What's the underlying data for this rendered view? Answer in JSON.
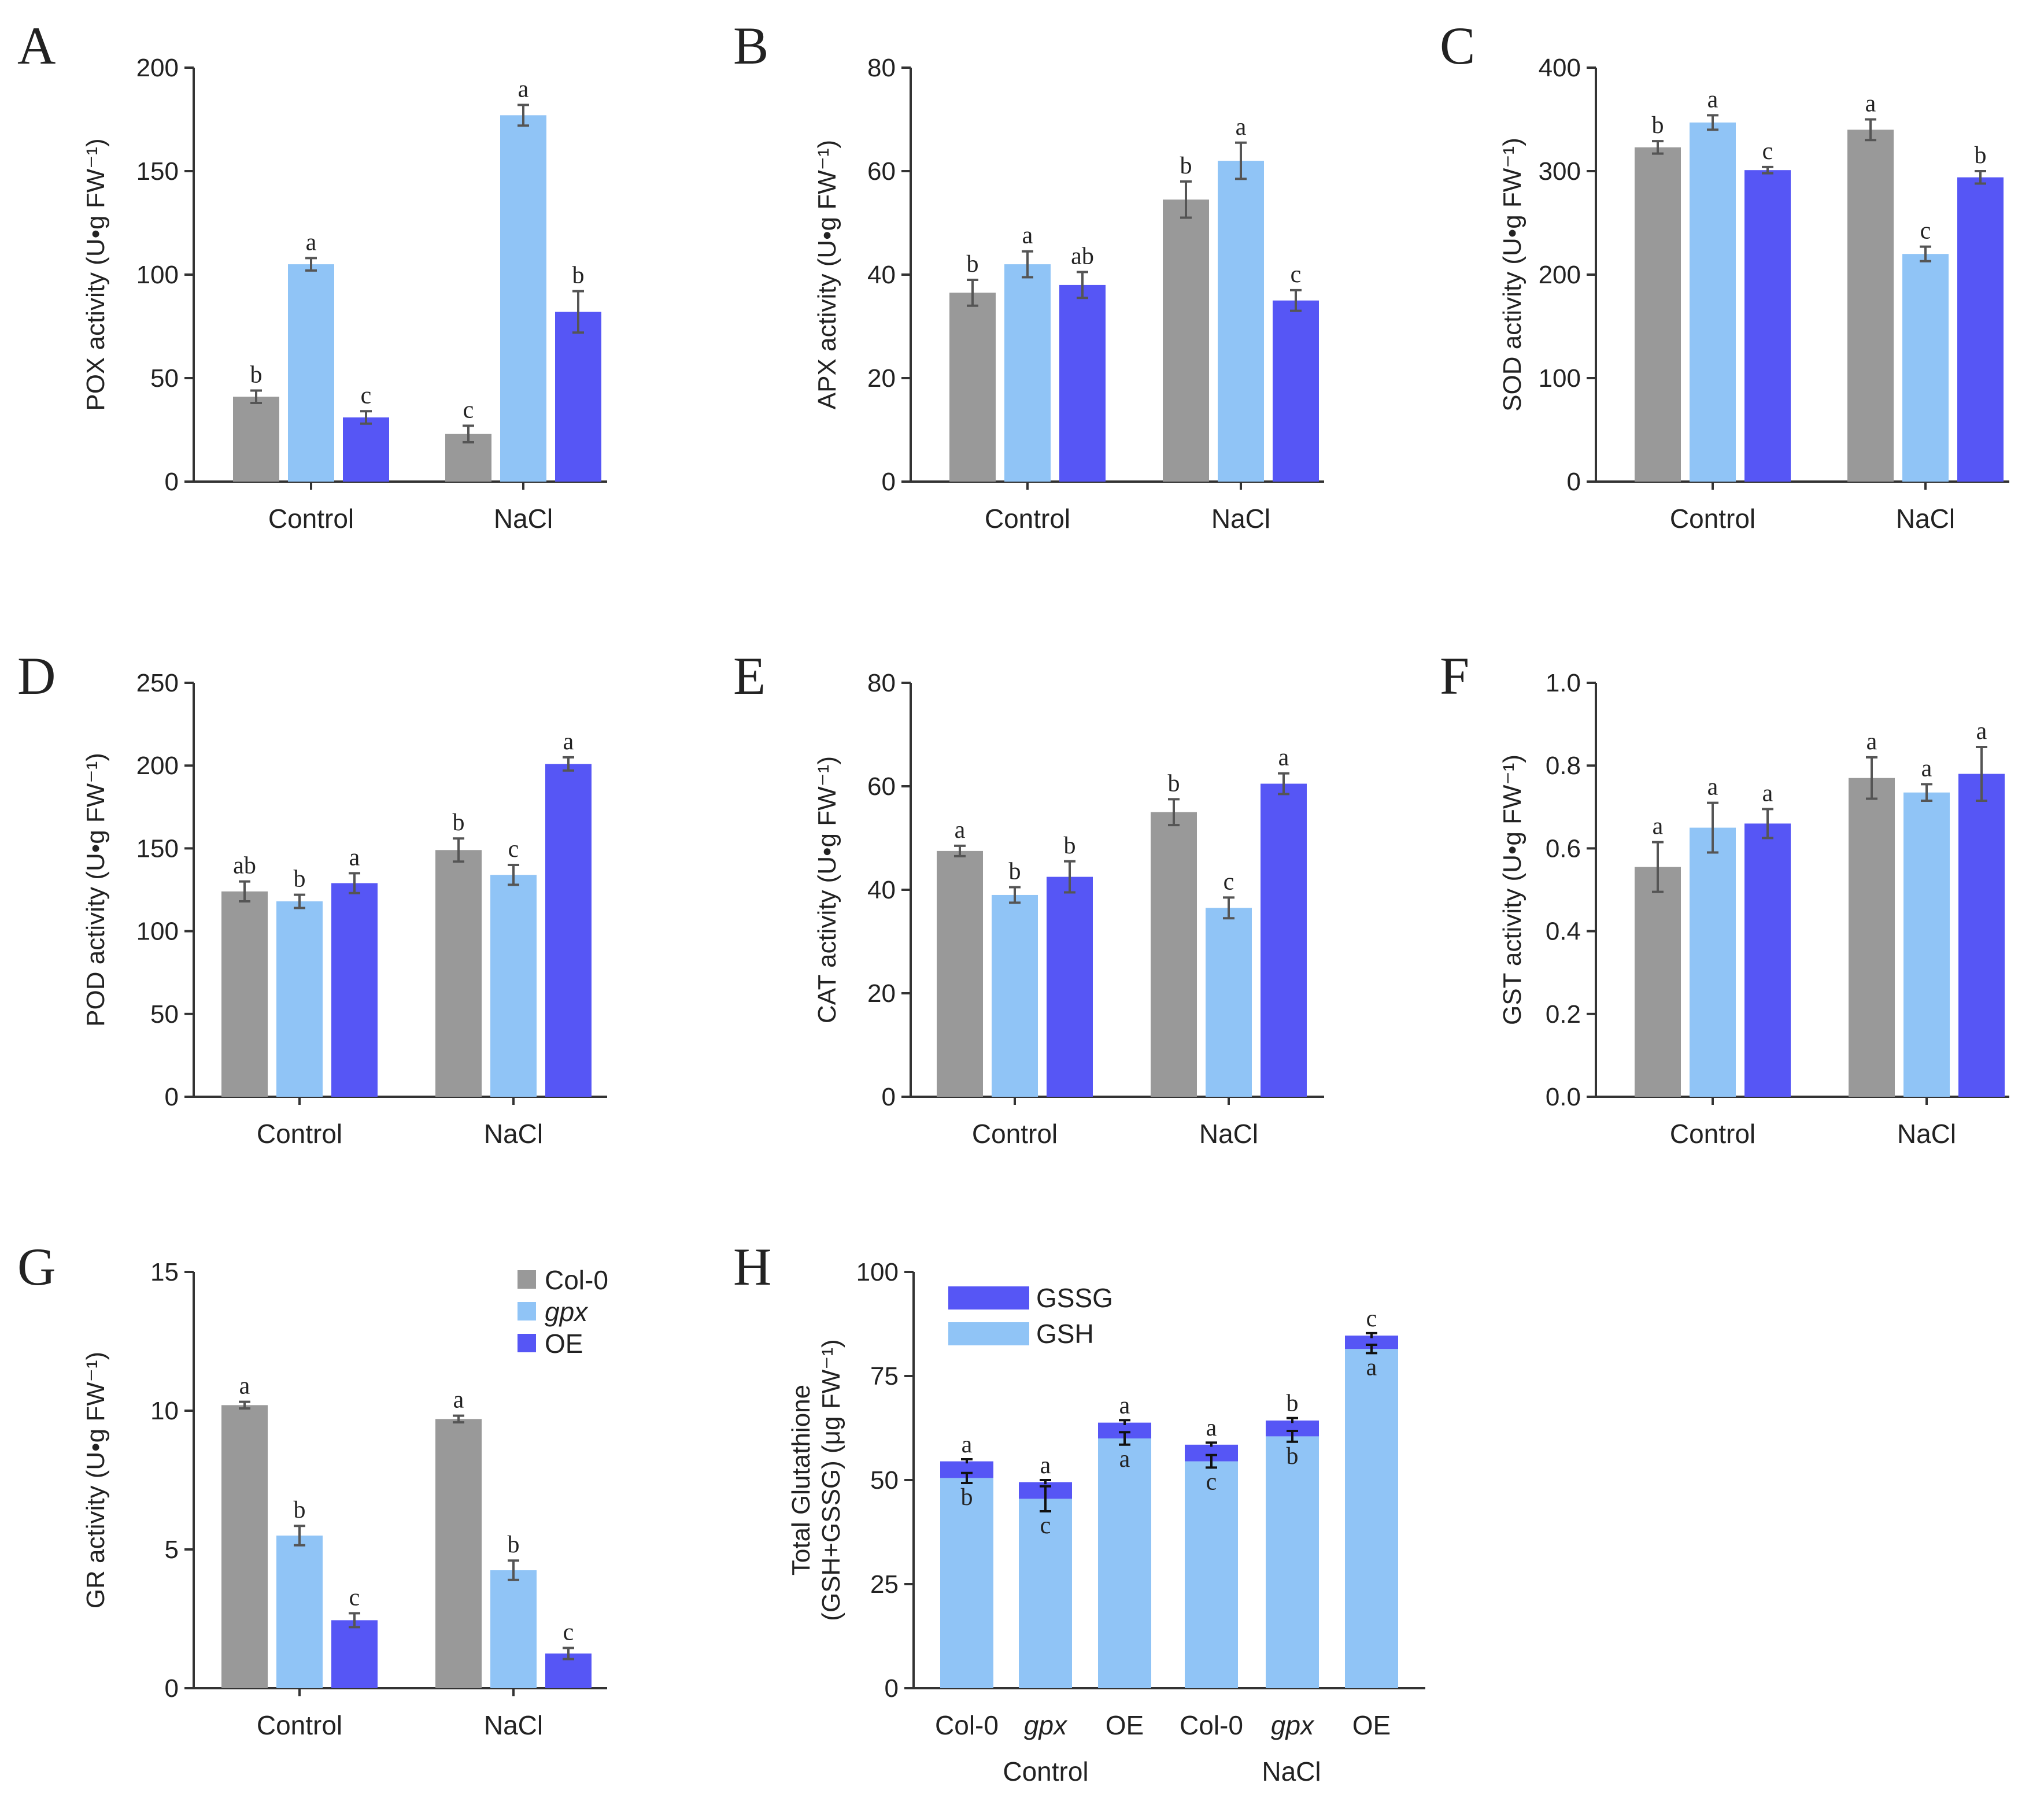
{
  "legend": [
    {
      "name": "Col-0",
      "italic": false
    },
    {
      "name": "gpx",
      "italic": true
    },
    {
      "name": "OE",
      "italic": false
    }
  ],
  "colors": {
    "Col-0": "#999999",
    "gpx": "#90c4f6",
    "OE": "#5656f5",
    "GSSG": "#5656f5",
    "GSH": "#90c4f6"
  },
  "chart_data": [
    {
      "panel": "A",
      "type": "bar",
      "ylabel": "POX activity (U•g FW⁻¹)",
      "categories": [
        "Control",
        "NaCl"
      ],
      "ylim": [
        0,
        200
      ],
      "yticks": [
        "0",
        "50",
        "100",
        "150",
        "200"
      ],
      "series": [
        {
          "name": "Col-0",
          "values": [
            41,
            23
          ],
          "errors": [
            3,
            4
          ],
          "letters": [
            "b",
            "c"
          ]
        },
        {
          "name": "gpx",
          "values": [
            105,
            177
          ],
          "errors": [
            3,
            5
          ],
          "letters": [
            "a",
            "a"
          ]
        },
        {
          "name": "OE",
          "values": [
            31,
            82
          ],
          "errors": [
            3,
            10
          ],
          "letters": [
            "c",
            "b"
          ]
        }
      ]
    },
    {
      "panel": "B",
      "type": "bar",
      "ylabel": "APX activity (U•g FW⁻¹)",
      "categories": [
        "Control",
        "NaCl"
      ],
      "ylim": [
        0,
        80
      ],
      "yticks": [
        "0",
        "20",
        "40",
        "60",
        "80"
      ],
      "series": [
        {
          "name": "Col-0",
          "values": [
            36.5,
            54.5
          ],
          "errors": [
            2.5,
            3.5
          ],
          "letters": [
            "b",
            "b"
          ]
        },
        {
          "name": "gpx",
          "values": [
            42,
            62
          ],
          "errors": [
            2.5,
            3.5
          ],
          "letters": [
            "a",
            "a"
          ]
        },
        {
          "name": "OE",
          "values": [
            38,
            35
          ],
          "errors": [
            2.5,
            2
          ],
          "letters": [
            "ab",
            "c"
          ]
        }
      ]
    },
    {
      "panel": "C",
      "type": "bar",
      "ylabel": "SOD activity (U•g FW⁻¹)",
      "categories": [
        "Control",
        "NaCl"
      ],
      "ylim": [
        0,
        400
      ],
      "yticks": [
        "0",
        "100",
        "200",
        "300",
        "400"
      ],
      "series": [
        {
          "name": "Col-0",
          "values": [
            323,
            340
          ],
          "errors": [
            6,
            10
          ],
          "letters": [
            "b",
            "a"
          ]
        },
        {
          "name": "gpx",
          "values": [
            347,
            220
          ],
          "errors": [
            7,
            7
          ],
          "letters": [
            "a",
            "c"
          ]
        },
        {
          "name": "OE",
          "values": [
            301,
            294
          ],
          "errors": [
            3,
            6
          ],
          "letters": [
            "c",
            "b"
          ]
        }
      ]
    },
    {
      "panel": "D",
      "type": "bar",
      "ylabel": "POD activity (U•g FW⁻¹)",
      "categories": [
        "Control",
        "NaCl"
      ],
      "ylim": [
        0,
        250
      ],
      "yticks": [
        "0",
        "50",
        "100",
        "150",
        "200",
        "250"
      ],
      "series": [
        {
          "name": "Col-0",
          "values": [
            124,
            149
          ],
          "errors": [
            6,
            7
          ],
          "letters": [
            "ab",
            "b"
          ]
        },
        {
          "name": "gpx",
          "values": [
            118,
            134
          ],
          "errors": [
            4,
            6
          ],
          "letters": [
            "b",
            "c"
          ]
        },
        {
          "name": "OE",
          "values": [
            129,
            201
          ],
          "errors": [
            6,
            4
          ],
          "letters": [
            "a",
            "a"
          ]
        }
      ]
    },
    {
      "panel": "E",
      "type": "bar",
      "ylabel": "CAT activity (U•g FW⁻¹)",
      "categories": [
        "Control",
        "NaCl"
      ],
      "ylim": [
        0,
        80
      ],
      "yticks": [
        "0",
        "20",
        "40",
        "60",
        "80"
      ],
      "series": [
        {
          "name": "Col-0",
          "values": [
            47.5,
            55
          ],
          "errors": [
            1,
            2.5
          ],
          "letters": [
            "a",
            "b"
          ]
        },
        {
          "name": "gpx",
          "values": [
            39,
            36.5
          ],
          "errors": [
            1.5,
            2
          ],
          "letters": [
            "b",
            "c"
          ]
        },
        {
          "name": "OE",
          "values": [
            42.5,
            60.5
          ],
          "errors": [
            3,
            2
          ],
          "letters": [
            "b",
            "a"
          ]
        }
      ]
    },
    {
      "panel": "F",
      "type": "bar",
      "ylabel": "GST activity (U•g FW⁻¹)",
      "categories": [
        "Control",
        "NaCl"
      ],
      "ylim": [
        0,
        1.0
      ],
      "yticks": [
        "0.0",
        "0.2",
        "0.4",
        "0.6",
        "0.8",
        "1.0"
      ],
      "series": [
        {
          "name": "Col-0",
          "values": [
            0.555,
            0.77
          ],
          "errors": [
            0.06,
            0.05
          ],
          "letters": [
            "a",
            "a"
          ]
        },
        {
          "name": "gpx",
          "values": [
            0.65,
            0.735
          ],
          "errors": [
            0.06,
            0.02
          ],
          "letters": [
            "a",
            "a"
          ]
        },
        {
          "name": "OE",
          "values": [
            0.66,
            0.78
          ],
          "errors": [
            0.035,
            0.065
          ],
          "letters": [
            "a",
            "a"
          ]
        }
      ]
    },
    {
      "panel": "G",
      "type": "bar",
      "ylabel": "GR activity (U•g FW⁻¹)",
      "categories": [
        "Control",
        "NaCl"
      ],
      "ylim": [
        0,
        15
      ],
      "yticks": [
        "0",
        "5",
        "10",
        "15"
      ],
      "series": [
        {
          "name": "Col-0",
          "values": [
            10.2,
            9.7
          ],
          "errors": [
            0.12,
            0.12
          ],
          "letters": [
            "a",
            "a"
          ]
        },
        {
          "name": "gpx",
          "values": [
            5.5,
            4.25
          ],
          "errors": [
            0.35,
            0.35
          ],
          "letters": [
            "b",
            "b"
          ]
        },
        {
          "name": "OE",
          "values": [
            2.45,
            1.25
          ],
          "errors": [
            0.25,
            0.2
          ],
          "letters": [
            "c",
            "c"
          ]
        }
      ]
    },
    {
      "panel": "H",
      "type": "stacked-bar",
      "ylabel": "Total Glutathione (GSH+GSSG) (μg FW⁻¹)",
      "ylabel_lines": [
        "Total Glutathione",
        "(GSH+GSSG) (μg FW⁻¹)"
      ],
      "categories": [
        "Col-0",
        "gpx",
        "OE",
        "Col-0",
        "gpx",
        "OE"
      ],
      "category_italic": [
        false,
        true,
        false,
        false,
        true,
        false
      ],
      "groups": [
        "Control",
        "NaCl"
      ],
      "ylim": [
        0,
        100
      ],
      "yticks": [
        "0",
        "25",
        "50",
        "75",
        "100"
      ],
      "series": [
        {
          "name": "GSH",
          "values": [
            50.5,
            45.5,
            60,
            54.5,
            60.5,
            81.5
          ],
          "errors": [
            1.2,
            3,
            1.5,
            1.5,
            1.3,
            1
          ],
          "letters": [
            "b",
            "c",
            "a",
            "c",
            "b",
            "a"
          ]
        },
        {
          "name": "GSSG",
          "values": [
            4,
            4,
            3.8,
            4,
            3.8,
            3.2
          ],
          "errors": [
            0.5,
            0.5,
            0.6,
            0.5,
            0.6,
            0.6
          ],
          "letters": [
            "a",
            "a",
            "a",
            "a",
            "b",
            "c"
          ]
        }
      ],
      "legend": [
        "GSSG",
        "GSH"
      ]
    }
  ]
}
